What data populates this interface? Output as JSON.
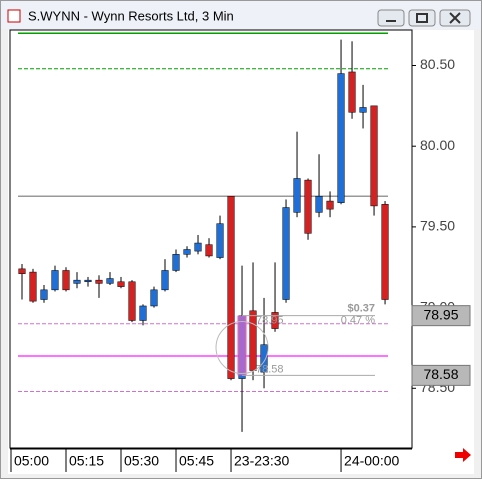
{
  "chart_data": {
    "type": "candlestick",
    "title": "S.WYNN - Wynn Resorts Ltd, 3 Min",
    "up_color": "#1f6fd6",
    "down_color": "#d42222",
    "xlim": [
      -1.09,
      35.45
    ],
    "xticks": [
      {
        "value": -1,
        "label": "05:00"
      },
      {
        "value": 4,
        "label": "05:15"
      },
      {
        "value": 9,
        "label": "05:30"
      },
      {
        "value": 14,
        "label": "05:45"
      },
      {
        "value": 19,
        "label": "23-23:30"
      },
      {
        "value": 29,
        "label": "24-00:00"
      }
    ],
    "ylim": [
      78.13,
      80.72
    ],
    "yticks": [
      {
        "value": 78.5,
        "label": "78.50"
      },
      {
        "value": 79,
        "label": "79.00"
      },
      {
        "value": 79.5,
        "label": "79.50"
      },
      {
        "value": 80,
        "label": "80.00"
      },
      {
        "value": 80.5,
        "label": "80.50"
      }
    ],
    "open": [
      79.24,
      79.22,
      79.05,
      79.11,
      79.23,
      79.15,
      79.16,
      79.17,
      79.15,
      79.16,
      79.16,
      78.92,
      79.01,
      79.11,
      79.23,
      79.33,
      79.35,
      79.39,
      79.31,
      79.69,
      78.56,
      78.98,
      78.6,
      78.97,
      79.05,
      79.59,
      79.79,
      79.59,
      79.66,
      79.65,
      80.46,
      80.21,
      80.25,
      79.64
    ],
    "high": [
      79.27,
      79.24,
      79.14,
      79.26,
      79.25,
      79.22,
      79.19,
      79.2,
      79.22,
      79.19,
      79.17,
      79.02,
      79.13,
      79.3,
      79.36,
      79.38,
      79.45,
      79.43,
      79.57,
      79.69,
      79.26,
      79.28,
      79.06,
      79.28,
      79.67,
      80.09,
      79.8,
      79.95,
      79.72,
      80.66,
      80.65,
      80.38,
      80.25,
      79.66
    ],
    "low": [
      79.05,
      79.03,
      79.03,
      79.1,
      79.1,
      79.12,
      79.13,
      79.06,
      79.14,
      79.12,
      78.91,
      78.89,
      79.0,
      79.1,
      79.22,
      79.31,
      79.33,
      79.31,
      79.3,
      78.55,
      78.23,
      78.55,
      78.5,
      78.85,
      79.03,
      79.56,
      79.42,
      79.56,
      79.56,
      79.64,
      80.17,
      80.11,
      79.57,
      79.02
    ],
    "close": [
      79.21,
      79.04,
      79.11,
      79.23,
      79.11,
      79.17,
      79.17,
      79.15,
      79.18,
      79.13,
      78.92,
      79.01,
      79.11,
      79.23,
      79.33,
      79.36,
      79.4,
      79.32,
      79.52,
      78.56,
      78.95,
      78.61,
      78.77,
      78.87,
      79.62,
      79.8,
      79.46,
      79.69,
      79.61,
      80.45,
      80.21,
      80.24,
      79.63,
      79.05
    ],
    "hlines": [
      {
        "value": 80.7,
        "color": "#00a000",
        "style": "solid"
      },
      {
        "value": 80.48,
        "color": "#00a000",
        "style": "dashed"
      },
      {
        "value": 79.69,
        "color": "#999999",
        "style": "solid"
      },
      {
        "value": 78.9,
        "color": "#d070d0",
        "style": "dashed"
      },
      {
        "value": 78.7,
        "color": "#ff44ff",
        "style": "solid"
      },
      {
        "value": 78.48,
        "color": "#d070d0",
        "style": "dashed"
      }
    ],
    "price_markers": [
      78.95,
      78.58
    ],
    "measure": {
      "from": 78.95,
      "to": 78.58,
      "change_label": "$0.37",
      "percent_label": "0.47 %"
    }
  }
}
